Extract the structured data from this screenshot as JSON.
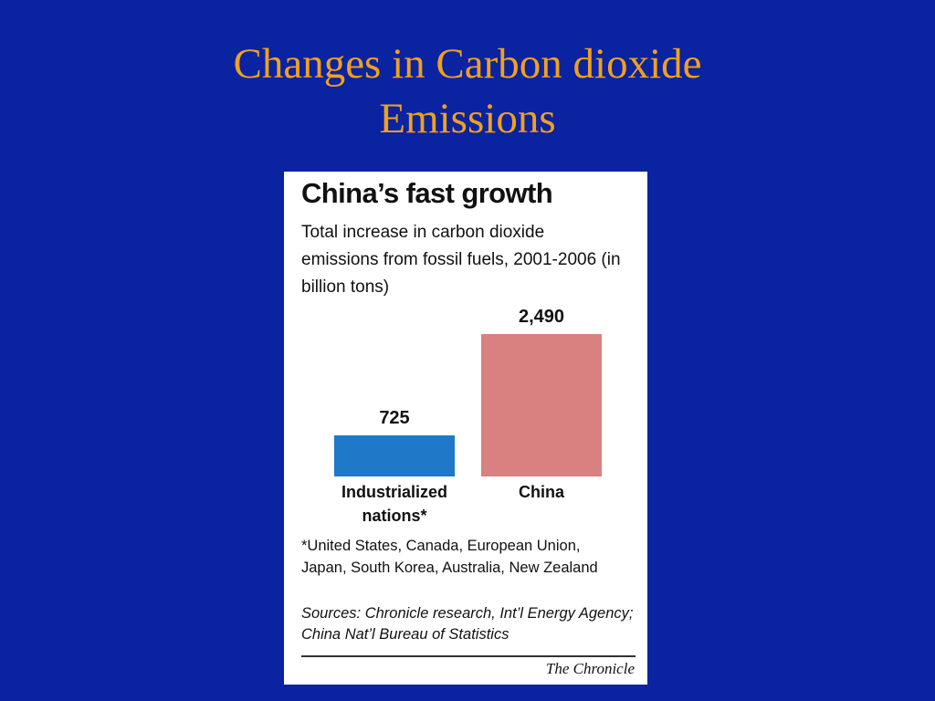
{
  "slide_title": "Changes in Carbon dioxide Emissions",
  "chart_data": {
    "type": "bar",
    "title": "China’s fast growth",
    "subtitle": "Total increase in carbon dioxide emissions from fossil fuels, 2001-2006 (in billion tons)",
    "categories": [
      "Industrialized nations*",
      "China"
    ],
    "values": [
      725,
      2490
    ],
    "value_labels": [
      "725",
      "2,490"
    ],
    "colors": [
      "#1f78c8",
      "#d98080"
    ],
    "footnote": "*United States, Canada, European Union, Japan, South Korea, Australia, New Zealand",
    "sources": "Sources: Chronicle research, Int’l Energy Agency; China Nat’l Bureau of Statistics",
    "credit": "The Chronicle"
  }
}
